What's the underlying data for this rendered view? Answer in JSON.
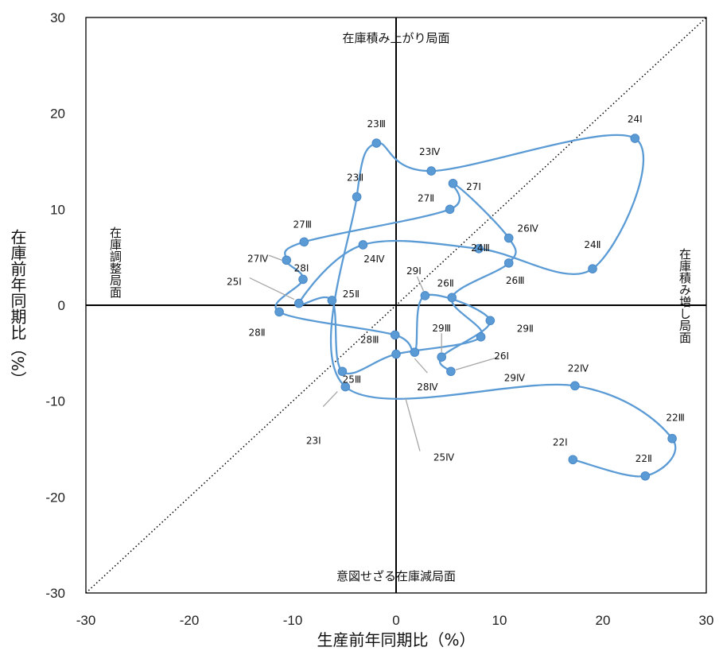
{
  "chart_data": {
    "type": "scatter",
    "xlabel": "生産前年同期比（%）",
    "ylabel": "在庫前年同期比（%）",
    "xlim": [
      -30,
      30
    ],
    "ylim": [
      -30,
      30
    ],
    "x_ticks": [
      "-30",
      "-20",
      "-10",
      "0",
      "10",
      "20",
      "30"
    ],
    "y_ticks": [
      "30",
      "20",
      "10",
      "0",
      "-10",
      "-20",
      "-30"
    ],
    "grid": false,
    "diagonal_reference_line": true,
    "regions": {
      "top": "在庫積み上がり局面",
      "right": "在庫積み増し局面",
      "bottom": "意図せざる在庫減局面",
      "left": "在庫調整局面"
    },
    "series_color": "#5b9bd5",
    "points": [
      {
        "label": "22Ⅰ",
        "x": 17.1,
        "y": -16.1
      },
      {
        "label": "22Ⅱ",
        "x": 24.1,
        "y": -17.8
      },
      {
        "label": "22Ⅲ",
        "x": 26.7,
        "y": -13.9
      },
      {
        "label": "22Ⅳ",
        "x": 17.3,
        "y": -8.4
      },
      {
        "label": "23Ⅰ",
        "x": -4.9,
        "y": -8.5
      },
      {
        "label": "23Ⅱ",
        "x": -3.8,
        "y": 11.3
      },
      {
        "label": "23Ⅲ",
        "x": -1.9,
        "y": 16.9
      },
      {
        "label": "23Ⅳ",
        "x": 3.4,
        "y": 14.0
      },
      {
        "label": "24Ⅰ",
        "x": 23.1,
        "y": 17.4
      },
      {
        "label": "24Ⅱ",
        "x": 19.0,
        "y": 3.8
      },
      {
        "label": "24Ⅲ",
        "x": 8.0,
        "y": 5.9
      },
      {
        "label": "24Ⅳ",
        "x": -3.2,
        "y": 6.3
      },
      {
        "label": "25Ⅰ",
        "x": -9.4,
        "y": 0.2
      },
      {
        "label": "25Ⅱ",
        "x": -6.2,
        "y": 0.5
      },
      {
        "label": "25Ⅲ",
        "x": -5.2,
        "y": -6.9
      },
      {
        "label": "25Ⅳ",
        "x": 0.0,
        "y": -5.1
      },
      {
        "label": "26Ⅰ",
        "x": 8.2,
        "y": -3.3
      },
      {
        "label": "26Ⅱ",
        "x": 5.4,
        "y": 0.8
      },
      {
        "label": "26Ⅲ",
        "x": 10.9,
        "y": 4.4
      },
      {
        "label": "26Ⅳ",
        "x": 10.9,
        "y": 7.0
      },
      {
        "label": "27Ⅰ",
        "x": 5.5,
        "y": 12.7
      },
      {
        "label": "27Ⅱ",
        "x": 5.2,
        "y": 10.0
      },
      {
        "label": "27Ⅲ",
        "x": -8.9,
        "y": 6.6
      },
      {
        "label": "27Ⅳ",
        "x": -10.6,
        "y": 4.7
      },
      {
        "label": "28Ⅰ",
        "x": -9.0,
        "y": 2.7
      },
      {
        "label": "28Ⅱ",
        "x": -11.3,
        "y": -0.7
      },
      {
        "label": "28Ⅲ",
        "x": -0.1,
        "y": -3.1
      },
      {
        "label": "28Ⅳ",
        "x": 1.8,
        "y": -4.9
      },
      {
        "label": "29Ⅰ",
        "x": 2.8,
        "y": 1.0
      },
      {
        "label": "29Ⅱ",
        "x": 9.1,
        "y": -1.6
      },
      {
        "label": "29Ⅲ",
        "x": 4.4,
        "y": -5.4
      },
      {
        "label": "29Ⅳ",
        "x": 5.3,
        "y": -6.9
      }
    ]
  }
}
